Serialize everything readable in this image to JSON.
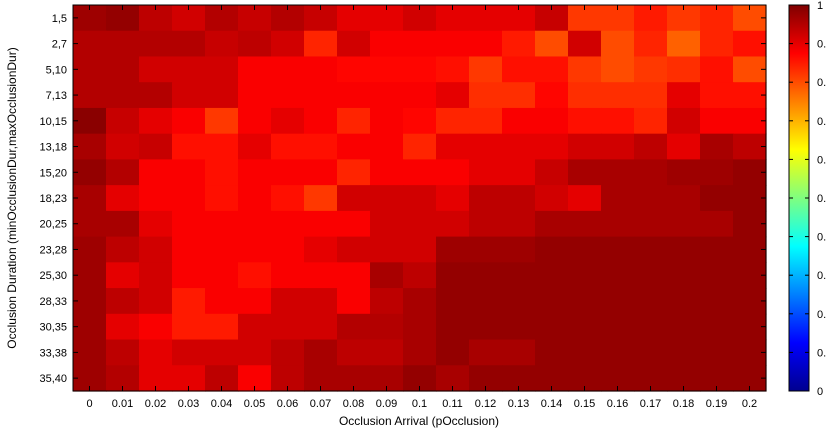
{
  "chart_data": {
    "type": "heatmap",
    "title": "",
    "xlabel": "Occlusion Arrival (pOcclusion)",
    "ylabel": "Occlusion Duration (minOcclusionDur,maxOcclusionDur)",
    "x_categories": [
      "0",
      "0.01",
      "0.02",
      "0.03",
      "0.04",
      "0.05",
      "0.06",
      "0.07",
      "0.08",
      "0.09",
      "0.1",
      "0.11",
      "0.12",
      "0.13",
      "0.14",
      "0.15",
      "0.16",
      "0.17",
      "0.18",
      "0.19",
      "0.2"
    ],
    "y_categories": [
      "1,5",
      "2,7",
      "5,10",
      "7,13",
      "10,15",
      "13,18",
      "15,20",
      "18,23",
      "20,25",
      "23,28",
      "25,30",
      "28,33",
      "30,35",
      "33,38",
      "35,40"
    ],
    "colorscale": "jet",
    "clim": [
      0,
      1
    ],
    "colorbar_ticks": [
      "0",
      "0.",
      "0.",
      "0.",
      "0.",
      "0.",
      "0.",
      "0.",
      "0.",
      "0.",
      "1"
    ],
    "values": [
      [
        0.97,
        0.98,
        0.94,
        0.92,
        0.95,
        0.93,
        0.95,
        0.93,
        0.9,
        0.9,
        0.92,
        0.9,
        0.9,
        0.9,
        0.93,
        0.82,
        0.82,
        0.85,
        0.82,
        0.84,
        0.8
      ],
      [
        0.95,
        0.95,
        0.95,
        0.95,
        0.93,
        0.94,
        0.92,
        0.84,
        0.92,
        0.88,
        0.88,
        0.88,
        0.88,
        0.85,
        0.8,
        0.92,
        0.8,
        0.84,
        0.78,
        0.84,
        0.86
      ],
      [
        0.95,
        0.95,
        0.92,
        0.92,
        0.92,
        0.88,
        0.88,
        0.88,
        0.87,
        0.87,
        0.87,
        0.86,
        0.82,
        0.86,
        0.86,
        0.82,
        0.8,
        0.82,
        0.83,
        0.86,
        0.8
      ],
      [
        0.95,
        0.95,
        0.95,
        0.92,
        0.92,
        0.88,
        0.88,
        0.88,
        0.88,
        0.88,
        0.88,
        0.9,
        0.83,
        0.83,
        0.87,
        0.83,
        0.83,
        0.83,
        0.9,
        0.86,
        0.86
      ],
      [
        0.99,
        0.93,
        0.9,
        0.88,
        0.82,
        0.88,
        0.9,
        0.88,
        0.84,
        0.88,
        0.87,
        0.84,
        0.84,
        0.88,
        0.88,
        0.86,
        0.86,
        0.84,
        0.92,
        0.88,
        0.88
      ],
      [
        0.96,
        0.92,
        0.93,
        0.86,
        0.86,
        0.9,
        0.86,
        0.86,
        0.88,
        0.88,
        0.84,
        0.9,
        0.9,
        0.9,
        0.9,
        0.92,
        0.92,
        0.94,
        0.9,
        0.96,
        0.94
      ],
      [
        0.98,
        0.95,
        0.88,
        0.88,
        0.86,
        0.88,
        0.88,
        0.88,
        0.84,
        0.88,
        0.88,
        0.88,
        0.9,
        0.9,
        0.93,
        0.96,
        0.96,
        0.96,
        0.97,
        0.97,
        0.98
      ],
      [
        0.96,
        0.9,
        0.88,
        0.88,
        0.86,
        0.88,
        0.86,
        0.82,
        0.92,
        0.92,
        0.92,
        0.9,
        0.94,
        0.94,
        0.92,
        0.9,
        0.96,
        0.96,
        0.96,
        0.98,
        0.98
      ],
      [
        0.96,
        0.96,
        0.9,
        0.88,
        0.88,
        0.88,
        0.88,
        0.88,
        0.88,
        0.92,
        0.92,
        0.92,
        0.94,
        0.94,
        0.96,
        0.96,
        0.96,
        0.96,
        0.96,
        0.96,
        0.98
      ],
      [
        0.97,
        0.94,
        0.92,
        0.88,
        0.88,
        0.88,
        0.88,
        0.9,
        0.92,
        0.92,
        0.92,
        0.97,
        0.97,
        0.97,
        0.98,
        0.98,
        0.98,
        0.98,
        0.98,
        0.98,
        0.98
      ],
      [
        0.97,
        0.9,
        0.92,
        0.88,
        0.88,
        0.86,
        0.88,
        0.88,
        0.88,
        0.96,
        0.94,
        0.98,
        0.98,
        0.98,
        0.98,
        0.98,
        0.98,
        0.98,
        0.98,
        0.98,
        0.98
      ],
      [
        0.97,
        0.94,
        0.92,
        0.85,
        0.88,
        0.88,
        0.92,
        0.92,
        0.88,
        0.94,
        0.96,
        0.98,
        0.98,
        0.98,
        0.98,
        0.98,
        0.98,
        0.98,
        0.98,
        0.98,
        0.98
      ],
      [
        0.97,
        0.9,
        0.88,
        0.85,
        0.85,
        0.92,
        0.92,
        0.92,
        0.95,
        0.95,
        0.96,
        0.98,
        0.98,
        0.98,
        0.98,
        0.98,
        0.98,
        0.98,
        0.98,
        0.98,
        0.98
      ],
      [
        0.97,
        0.94,
        0.9,
        0.92,
        0.92,
        0.92,
        0.94,
        0.96,
        0.94,
        0.94,
        0.96,
        0.98,
        0.96,
        0.96,
        0.98,
        0.98,
        0.98,
        0.98,
        0.98,
        0.98,
        0.98
      ],
      [
        0.97,
        0.95,
        0.9,
        0.9,
        0.94,
        0.88,
        0.94,
        0.96,
        0.96,
        0.96,
        0.98,
        0.96,
        0.98,
        0.98,
        0.98,
        0.98,
        0.98,
        0.98,
        0.98,
        0.98,
        0.98
      ]
    ]
  }
}
